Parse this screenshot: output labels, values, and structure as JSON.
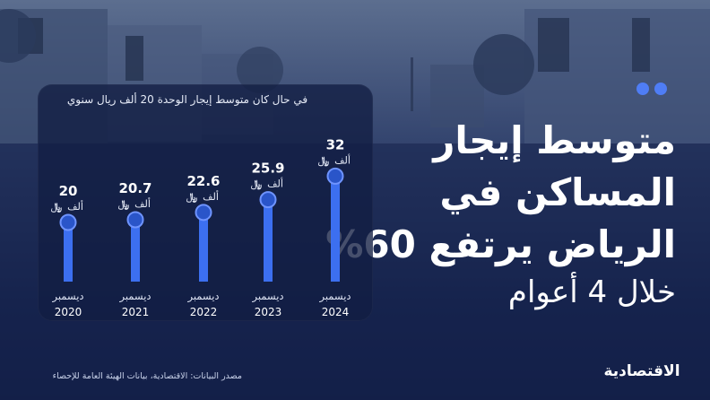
{
  "headline": {
    "line1": "متوسط إيجار",
    "line2": "المساكن في",
    "line3": "الرياض يرتفع 60%",
    "line4": "خلال 4 أعوام"
  },
  "card_note": "في حال كان متوسط إيجار الوحدة 20 ألف ريال سنوي",
  "source": "مصدر البيانات: الاقتصادية، بيانات الهيئة العامة للإحصاء",
  "logo": "الاقتصادية",
  "colors": {
    "background": "#15234d",
    "bar": "#3c6ff0",
    "accent": "#4f7df5"
  },
  "chart_data": {
    "type": "bar",
    "categories": [
      "ديسمبر 2020",
      "ديسمبر 2021",
      "ديسمبر 2022",
      "ديسمبر 2023",
      "ديسمبر 2024"
    ],
    "category_month": [
      "ديسمبر",
      "ديسمبر",
      "ديسمبر",
      "ديسمبر",
      "ديسمبر"
    ],
    "category_year": [
      "2020",
      "2021",
      "2022",
      "2023",
      "2024"
    ],
    "values": [
      20,
      20.7,
      22.6,
      25.9,
      32
    ],
    "value_labels": [
      "20",
      "20.7",
      "22.6",
      "25.9",
      "32"
    ],
    "unit_label": "ألف",
    "unit_icon": "riyal-sign-icon",
    "title": "",
    "xlabel": "",
    "ylabel": "",
    "grid": false
  }
}
